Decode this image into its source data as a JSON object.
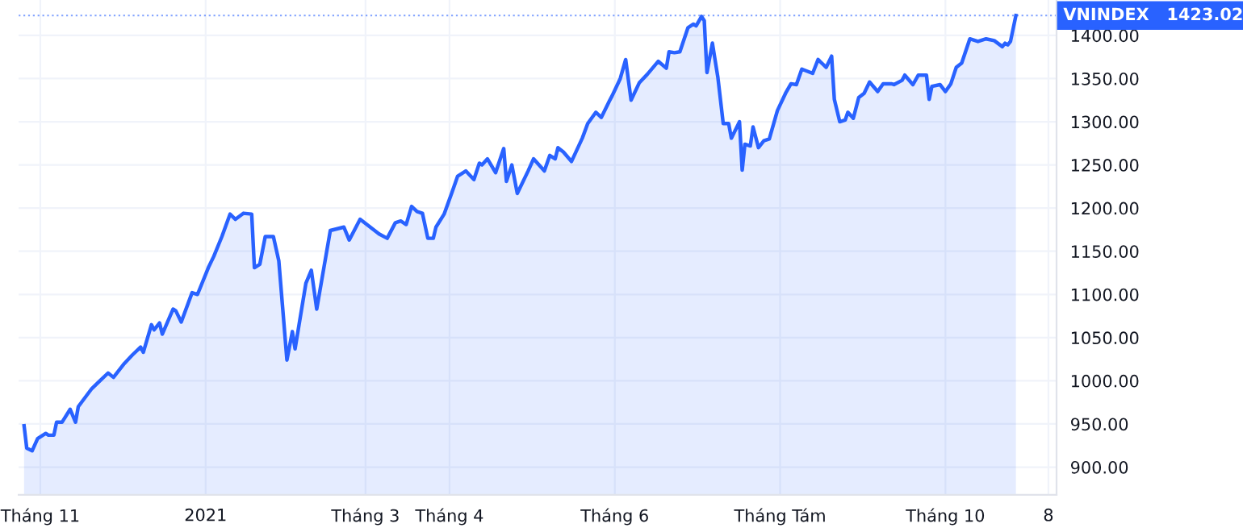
{
  "chart_data": {
    "type": "area",
    "x": [
      "2020-10-26",
      "2020-10-27",
      "2020-10-29",
      "2020-10-31",
      "2020-11-03",
      "2020-11-04",
      "2020-11-06",
      "2020-11-07",
      "2020-11-09",
      "2020-11-12",
      "2020-11-14",
      "2020-11-15",
      "2020-11-20",
      "2020-11-23",
      "2020-11-26",
      "2020-11-28",
      "2020-12-02",
      "2020-12-05",
      "2020-12-08",
      "2020-12-09",
      "2020-12-12",
      "2020-12-13",
      "2020-12-15",
      "2020-12-16",
      "2020-12-20",
      "2020-12-21",
      "2020-12-23",
      "2020-12-27",
      "2020-12-29",
      "2021-01-02",
      "2021-01-04",
      "2021-01-07",
      "2021-01-10",
      "2021-01-12",
      "2021-01-15",
      "2021-01-18",
      "2021-01-19",
      "2021-01-21",
      "2021-01-23",
      "2021-01-26",
      "2021-01-28",
      "2021-01-31",
      "2021-02-02",
      "2021-02-03",
      "2021-02-07",
      "2021-02-09",
      "2021-02-11",
      "2021-02-16",
      "2021-02-21",
      "2021-02-23",
      "2021-02-27",
      "2021-03-06",
      "2021-03-09",
      "2021-03-12",
      "2021-03-14",
      "2021-03-16",
      "2021-03-18",
      "2021-03-20",
      "2021-03-22",
      "2021-03-24",
      "2021-03-26",
      "2021-03-27",
      "2021-03-30",
      "2021-04-02",
      "2021-04-04",
      "2021-04-07",
      "2021-04-10",
      "2021-04-12",
      "2021-04-13",
      "2021-04-15",
      "2021-04-18",
      "2021-04-21",
      "2021-04-22",
      "2021-04-24",
      "2021-04-26",
      "2021-04-30",
      "2021-05-02",
      "2021-05-06",
      "2021-05-08",
      "2021-05-10",
      "2021-05-11",
      "2021-05-13",
      "2021-05-16",
      "2021-05-20",
      "2021-05-22",
      "2021-05-25",
      "2021-05-27",
      "2021-05-30",
      "2021-05-31",
      "2021-06-03",
      "2021-06-05",
      "2021-06-07",
      "2021-06-10",
      "2021-06-13",
      "2021-06-17",
      "2021-06-20",
      "2021-06-21",
      "2021-06-23",
      "2021-06-25",
      "2021-06-28",
      "2021-06-30",
      "2021-07-01",
      "2021-07-03",
      "2021-07-04",
      "2021-07-05",
      "2021-07-07",
      "2021-07-09",
      "2021-07-11",
      "2021-07-13",
      "2021-07-14",
      "2021-07-17",
      "2021-07-18",
      "2021-07-19",
      "2021-07-21",
      "2021-07-22",
      "2021-07-24",
      "2021-07-26",
      "2021-07-28",
      "2021-07-31",
      "2021-08-03",
      "2021-08-05",
      "2021-08-07",
      "2021-08-09",
      "2021-08-13",
      "2021-08-15",
      "2021-08-18",
      "2021-08-20",
      "2021-08-21",
      "2021-08-23",
      "2021-08-25",
      "2021-08-26",
      "2021-08-28",
      "2021-08-30",
      "2021-09-01",
      "2021-09-03",
      "2021-09-06",
      "2021-09-08",
      "2021-09-11",
      "2021-09-12",
      "2021-09-15",
      "2021-09-16",
      "2021-09-19",
      "2021-09-21",
      "2021-09-24",
      "2021-09-25",
      "2021-09-26",
      "2021-09-29",
      "2021-10-01",
      "2021-10-03",
      "2021-10-05",
      "2021-10-07",
      "2021-10-10",
      "2021-10-13",
      "2021-10-16",
      "2021-10-19",
      "2021-10-22",
      "2021-10-23",
      "2021-10-24",
      "2021-10-25",
      "2021-10-27"
    ],
    "series": [
      {
        "name": "VNINDEX",
        "color": "#2962ff",
        "values": [
          948,
          922,
          919,
          933,
          939,
          937,
          937,
          952,
          952,
          967,
          952,
          970,
          991,
          1000,
          1009,
          1004,
          1020,
          1030,
          1039,
          1033,
          1065,
          1059,
          1067,
          1054,
          1083,
          1081,
          1068,
          1102,
          1100,
          1131,
          1144,
          1167,
          1193,
          1187,
          1194,
          1193,
          1131,
          1135,
          1167,
          1167,
          1139,
          1024,
          1057,
          1037,
          1113,
          1128,
          1083,
          1174,
          1178,
          1163,
          1187,
          1170,
          1165,
          1183,
          1185,
          1181,
          1202,
          1196,
          1194,
          1165,
          1165,
          1178,
          1193,
          1219,
          1237,
          1243,
          1233,
          1252,
          1250,
          1257,
          1241,
          1269,
          1231,
          1250,
          1217,
          1243,
          1257,
          1243,
          1261,
          1257,
          1270,
          1265,
          1254,
          1281,
          1298,
          1311,
          1305,
          1324,
          1330,
          1350,
          1372,
          1325,
          1345,
          1355,
          1370,
          1362,
          1381,
          1380,
          1381,
          1409,
          1413,
          1411,
          1422,
          1417,
          1357,
          1391,
          1352,
          1298,
          1298,
          1281,
          1300,
          1244,
          1274,
          1272,
          1294,
          1270,
          1278,
          1280,
          1313,
          1333,
          1344,
          1343,
          1361,
          1356,
          1372,
          1363,
          1376,
          1326,
          1300,
          1302,
          1311,
          1304,
          1328,
          1333,
          1346,
          1335,
          1344,
          1344,
          1343,
          1348,
          1354,
          1343,
          1354,
          1354,
          1326,
          1341,
          1343,
          1335,
          1344,
          1363,
          1368,
          1396,
          1393,
          1396,
          1394,
          1387,
          1391,
          1389,
          1393,
          1423.02
        ],
        "value_labels": [
          null,
          null,
          null,
          null,
          null,
          null,
          null,
          null,
          null,
          null,
          null,
          null,
          null,
          null,
          null,
          null,
          null,
          null,
          null,
          null,
          null,
          null,
          null,
          null,
          null,
          null,
          null,
          null,
          null,
          null,
          null,
          null,
          null,
          null,
          null,
          null,
          null,
          null,
          null,
          null,
          null,
          null,
          null,
          null,
          null,
          null,
          null,
          null,
          null,
          null,
          null,
          null,
          null,
          null,
          null,
          null,
          null,
          null,
          null,
          null,
          null,
          null,
          null,
          null,
          null,
          null,
          null,
          null,
          null,
          null,
          null,
          null,
          null,
          null,
          null,
          null,
          null,
          null,
          null,
          null,
          null,
          null,
          null,
          null,
          null,
          null,
          null,
          null,
          null,
          null,
          null,
          null,
          null,
          null,
          null,
          null,
          null,
          null,
          null,
          null,
          null,
          null,
          null,
          null,
          null,
          null,
          null,
          null,
          null,
          null,
          null,
          null,
          null,
          null,
          null,
          null,
          null,
          null,
          null,
          null,
          null,
          null,
          null,
          null,
          null,
          null,
          null,
          null,
          null,
          null,
          null,
          null,
          null,
          null,
          null,
          null,
          null,
          null,
          null,
          null,
          null,
          null,
          null,
          null,
          null,
          null,
          null,
          null,
          null,
          null,
          null,
          null,
          null,
          null,
          null,
          null,
          null,
          null,
          null,
          "1423.02"
        ]
      }
    ],
    "xlim": [
      "2020-10-24",
      "2021-11-11"
    ],
    "xticks": [
      {
        "value": "2020-11-01",
        "label": "Tháng 11"
      },
      {
        "value": "2021-01-01",
        "label": "2021"
      },
      {
        "value": "2021-03-01",
        "label": "Tháng 3"
      },
      {
        "value": "2021-04-01",
        "label": "Tháng 4"
      },
      {
        "value": "2021-06-01",
        "label": "Tháng 6"
      },
      {
        "value": "2021-08-01",
        "label": "Tháng Tám"
      },
      {
        "value": "2021-10-01",
        "label": "Tháng 10"
      },
      {
        "value": "2021-11-08",
        "label": "8"
      }
    ],
    "ylim": [
      868,
      1441
    ],
    "yticks": [
      {
        "value": 900,
        "label": "900.00"
      },
      {
        "value": 950,
        "label": "950.00"
      },
      {
        "value": 1000,
        "label": "1000.00"
      },
      {
        "value": 1050,
        "label": "1050.00"
      },
      {
        "value": 1100,
        "label": "1100.00"
      },
      {
        "value": 1150,
        "label": "1150.00"
      },
      {
        "value": 1200,
        "label": "1200.00"
      },
      {
        "value": 1250,
        "label": "1250.00"
      },
      {
        "value": 1300,
        "label": "1300.00"
      },
      {
        "value": 1350,
        "label": "1350.00"
      },
      {
        "value": 1400,
        "label": "1400.00"
      }
    ],
    "ref_lines": [
      {
        "axis": "y",
        "value": 1423.02,
        "color": "#2962ff",
        "line_style": "dotted"
      }
    ],
    "grid": true,
    "marker": "none",
    "line_style": "solid"
  }
}
